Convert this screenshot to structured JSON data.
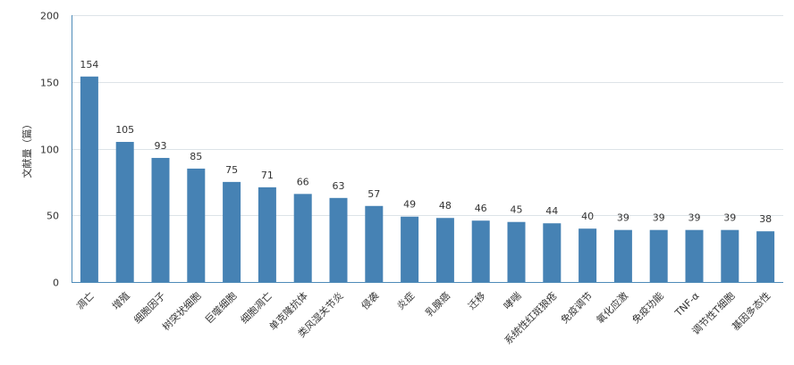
{
  "chart_data": {
    "type": "bar",
    "title": "",
    "xlabel": "",
    "ylabel": "文献量（篇）",
    "ylim": [
      0,
      200
    ],
    "yticks": [
      0,
      50,
      100,
      150,
      200
    ],
    "grid": true,
    "bar_color": "#4682b4",
    "categories": [
      "凋亡",
      "增殖",
      "细胞因子",
      "树突状细胞",
      "巨噬细胞",
      "细胞凋亡",
      "单克隆抗体",
      "类风湿关节炎",
      "侵袭",
      "炎症",
      "乳腺癌",
      "迁移",
      "哮喘",
      "系统性红斑狼疮",
      "免疫调节",
      "氧化应激",
      "免疫功能",
      "TNF-α",
      "调节性T细胞",
      "基因多态性"
    ],
    "values": [
      154,
      105,
      93,
      85,
      75,
      71,
      66,
      63,
      57,
      49,
      48,
      46,
      45,
      44,
      40,
      39,
      39,
      39,
      39,
      38
    ]
  }
}
